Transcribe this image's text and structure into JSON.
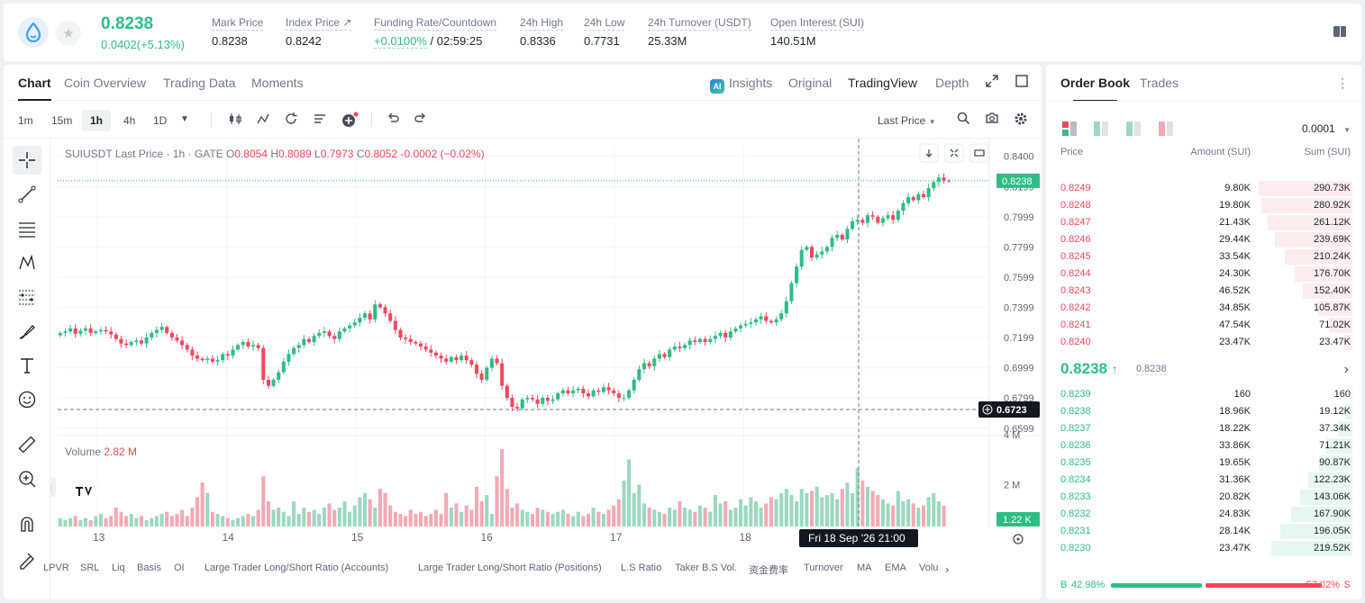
{
  "ticker": {
    "price": "0.8238",
    "change": "0.0402(+5.13%)",
    "stats": [
      {
        "label": "Mark Price",
        "value": "0.8238"
      },
      {
        "label": "Index Price ↗",
        "value": "0.8242"
      },
      {
        "label": "Funding Rate/Countdown",
        "rate": "+0.0100%",
        "countdown": " / 02:59:25"
      },
      {
        "label": "24h High",
        "value": "0.8336"
      },
      {
        "label": "24h Low",
        "value": "0.7731"
      },
      {
        "label": "24h Turnover (USDT)",
        "value": "25.33M"
      },
      {
        "label": "Open Interest (SUI)",
        "value": "140.51M"
      }
    ]
  },
  "chart_tabs": [
    "Chart",
    "Coin Overview",
    "Trading Data",
    "Moments"
  ],
  "view_tabs": {
    "insights": "Insights",
    "original": "Original",
    "tradingview": "TradingView",
    "depth": "Depth"
  },
  "timeframes": [
    "1m",
    "15m",
    "1h",
    "4h",
    "1D"
  ],
  "active_timeframe": "1h",
  "price_source": "Last Price",
  "legend": {
    "symbol": "SUIUSDT Last Price · 1h · GATE",
    "o_label": "O",
    "o": "0.8054",
    "h_label": "H",
    "h": "0.8089",
    "l_label": "L",
    "l": "0.7973",
    "c_label": "C",
    "c": "0.8052",
    "chg": "-0.0002 (−0.02%)"
  },
  "volume_legend": {
    "label": "Volume",
    "value": "2.82 M"
  },
  "indicators": [
    "LPVR",
    "SRL",
    "Liq",
    "Basis",
    "OI",
    "Large Trader Long/Short Ratio (Accounts)",
    "Large Trader Long/Short Ratio (Positions)",
    "L.S Ratio",
    "Taker B.S Vol.",
    "资金费率",
    "Turnover",
    "MA",
    "EMA",
    "Volu"
  ],
  "colors": {
    "up": "#2ebd85",
    "down": "#f6465d",
    "up_vol": "#9ad9bf",
    "down_vol": "#f3a9b4"
  },
  "chart_data": {
    "type": "candlestick",
    "price_ticks": [
      "0.8400",
      "0.8199",
      "0.7999",
      "0.7799",
      "0.7599",
      "0.7399",
      "0.7199",
      "0.6999",
      "0.6799",
      "0.6599"
    ],
    "current_price_label": "0.8238",
    "crosshair_price_label": "0.6723",
    "crosshair_time_label": "Fri 18 Sep '26   21:00",
    "volume_ticks": [
      "4 M",
      "2 M"
    ],
    "current_volume_label": "1.22 K",
    "x_ticks": [
      "13",
      "14",
      "15",
      "16",
      "17",
      "18"
    ],
    "ylim": [
      0.655,
      0.847
    ],
    "volume_max": 4.0,
    "candles_close": [
      0.723,
      0.724,
      0.726,
      0.7225,
      0.7245,
      0.726,
      0.723,
      0.724,
      0.725,
      0.724,
      0.722,
      0.719,
      0.716,
      0.715,
      0.717,
      0.718,
      0.716,
      0.72,
      0.723,
      0.725,
      0.727,
      0.723,
      0.72,
      0.718,
      0.715,
      0.712,
      0.708,
      0.706,
      0.705,
      0.706,
      0.704,
      0.705,
      0.709,
      0.708,
      0.712,
      0.715,
      0.717,
      0.714,
      0.715,
      0.713,
      0.692,
      0.688,
      0.692,
      0.697,
      0.704,
      0.709,
      0.713,
      0.715,
      0.719,
      0.717,
      0.721,
      0.723,
      0.724,
      0.721,
      0.719,
      0.724,
      0.726,
      0.728,
      0.73,
      0.733,
      0.736,
      0.732,
      0.742,
      0.74,
      0.736,
      0.731,
      0.725,
      0.72,
      0.719,
      0.717,
      0.716,
      0.714,
      0.712,
      0.71,
      0.708,
      0.706,
      0.704,
      0.707,
      0.705,
      0.708,
      0.705,
      0.702,
      0.696,
      0.692,
      0.7,
      0.706,
      0.703,
      0.688,
      0.68,
      0.674,
      0.673,
      0.679,
      0.68,
      0.679,
      0.676,
      0.68,
      0.678,
      0.679,
      0.683,
      0.685,
      0.683,
      0.685,
      0.686,
      0.683,
      0.681,
      0.685,
      0.684,
      0.687,
      0.685,
      0.683,
      0.68,
      0.68,
      0.685,
      0.692,
      0.699,
      0.703,
      0.701,
      0.706,
      0.709,
      0.707,
      0.712,
      0.714,
      0.713,
      0.715,
      0.718,
      0.717,
      0.719,
      0.717,
      0.719,
      0.721,
      0.723,
      0.72,
      0.724,
      0.726,
      0.728,
      0.729,
      0.73,
      0.732,
      0.734,
      0.731,
      0.73,
      0.732,
      0.736,
      0.744,
      0.756,
      0.767,
      0.778,
      0.78,
      0.773,
      0.775,
      0.777,
      0.78,
      0.786,
      0.788,
      0.785,
      0.792,
      0.797,
      0.798,
      0.796,
      0.801,
      0.8,
      0.796,
      0.799,
      0.801,
      0.798,
      0.804,
      0.809,
      0.813,
      0.811,
      0.815,
      0.813,
      0.819,
      0.823,
      0.826,
      0.824,
      0.8238
    ],
    "volumes": [
      0.4,
      0.3,
      0.4,
      0.5,
      0.3,
      0.4,
      0.3,
      0.5,
      0.6,
      0.4,
      0.5,
      0.9,
      0.7,
      0.5,
      0.6,
      0.4,
      0.5,
      0.3,
      0.4,
      0.5,
      0.6,
      0.7,
      0.5,
      0.6,
      0.8,
      0.5,
      0.9,
      1.4,
      2.1,
      1.6,
      0.7,
      0.6,
      0.5,
      0.4,
      0.3,
      0.4,
      0.5,
      0.6,
      0.5,
      0.8,
      2.4,
      1.2,
      0.8,
      0.9,
      0.7,
      0.5,
      1.2,
      0.6,
      0.9,
      0.7,
      0.8,
      0.6,
      0.9,
      1.1,
      0.8,
      0.9,
      1.2,
      0.7,
      1.0,
      1.4,
      1.6,
      1.3,
      0.9,
      1.8,
      1.6,
      1.0,
      0.7,
      0.6,
      0.5,
      0.8,
      0.6,
      0.7,
      0.5,
      0.6,
      0.8,
      0.6,
      1.6,
      0.9,
      1.1,
      0.7,
      1.0,
      0.8,
      1.9,
      1.2,
      1.5,
      0.6,
      2.4,
      3.7,
      1.8,
      0.9,
      1.1,
      0.8,
      0.7,
      0.6,
      0.9,
      0.8,
      0.7,
      0.6,
      0.7,
      0.8,
      0.6,
      0.5,
      0.7,
      0.5,
      0.6,
      0.9,
      0.7,
      0.6,
      0.8,
      1.0,
      1.3,
      2.2,
      3.2,
      1.6,
      2.0,
      1.1,
      0.9,
      0.8,
      0.7,
      0.6,
      0.9,
      0.8,
      1.2,
      0.9,
      0.8,
      0.7,
      1.0,
      0.9,
      0.7,
      1.5,
      1.1,
      1.2,
      0.8,
      0.9,
      1.3,
      1.0,
      1.4,
      1.2,
      0.9,
      1.1,
      1.4,
      1.3,
      1.6,
      1.8,
      1.5,
      1.2,
      1.8,
      1.6,
      1.7,
      1.9,
      1.4,
      1.5,
      1.6,
      1.3,
      1.8,
      2.1,
      1.6,
      2.8,
      2.2,
      1.9,
      1.7,
      1.5,
      1.3,
      1.1,
      1.0,
      1.7,
      1.2,
      1.3,
      1.1,
      0.9,
      1.0,
      1.4,
      1.6,
      1.2,
      1.0
    ]
  },
  "orderbook": {
    "tabs": [
      "Order Book",
      "Trades"
    ],
    "precision": "0.0001",
    "headers": {
      "price": "Price",
      "amount": "Amount (SUI)",
      "sum": "Sum (SUI)"
    },
    "asks": [
      {
        "price": "0.8249",
        "amount": "9.80K",
        "sum": "290.73K",
        "depth": 0.93
      },
      {
        "price": "0.8248",
        "amount": "19.80K",
        "sum": "280.92K",
        "depth": 0.9
      },
      {
        "price": "0.8247",
        "amount": "21.43K",
        "sum": "261.12K",
        "depth": 0.84
      },
      {
        "price": "0.8246",
        "amount": "29.44K",
        "sum": "239.69K",
        "depth": 0.77
      },
      {
        "price": "0.8245",
        "amount": "33.54K",
        "sum": "210.24K",
        "depth": 0.67
      },
      {
        "price": "0.8244",
        "amount": "24.30K",
        "sum": "176.70K",
        "depth": 0.57
      },
      {
        "price": "0.8243",
        "amount": "46.52K",
        "sum": "152.40K",
        "depth": 0.49
      },
      {
        "price": "0.8242",
        "amount": "34.85K",
        "sum": "105.87K",
        "depth": 0.34
      },
      {
        "price": "0.8241",
        "amount": "47.54K",
        "sum": "71.02K",
        "depth": 0.23
      },
      {
        "price": "0.8240",
        "amount": "23.47K",
        "sum": "23.47K",
        "depth": 0.08
      }
    ],
    "mid": {
      "price": "0.8238",
      "arrow": "↑",
      "mark": "0.8238"
    },
    "bids": [
      {
        "price": "0.8239",
        "amount": "160",
        "sum": "160",
        "depth": 0.005
      },
      {
        "price": "0.8238",
        "amount": "18.96K",
        "sum": "19.12K",
        "depth": 0.07
      },
      {
        "price": "0.8237",
        "amount": "18.22K",
        "sum": "37.34K",
        "depth": 0.14
      },
      {
        "price": "0.8236",
        "amount": "33.86K",
        "sum": "71.21K",
        "depth": 0.26
      },
      {
        "price": "0.8235",
        "amount": "19.65K",
        "sum": "90.87K",
        "depth": 0.33
      },
      {
        "price": "0.8234",
        "amount": "31.36K",
        "sum": "122.23K",
        "depth": 0.44
      },
      {
        "price": "0.8233",
        "amount": "20.82K",
        "sum": "143.06K",
        "depth": 0.52
      },
      {
        "price": "0.8232",
        "amount": "24.83K",
        "sum": "167.90K",
        "depth": 0.61
      },
      {
        "price": "0.8231",
        "amount": "28.14K",
        "sum": "196.05K",
        "depth": 0.71
      },
      {
        "price": "0.8230",
        "amount": "23.47K",
        "sum": "219.52K",
        "depth": 0.8
      }
    ],
    "ratio": {
      "buy_label": "B",
      "buy": "42.98%",
      "sell": "57.02%",
      "sell_label": "S",
      "buy_fraction": 0.4298
    }
  }
}
